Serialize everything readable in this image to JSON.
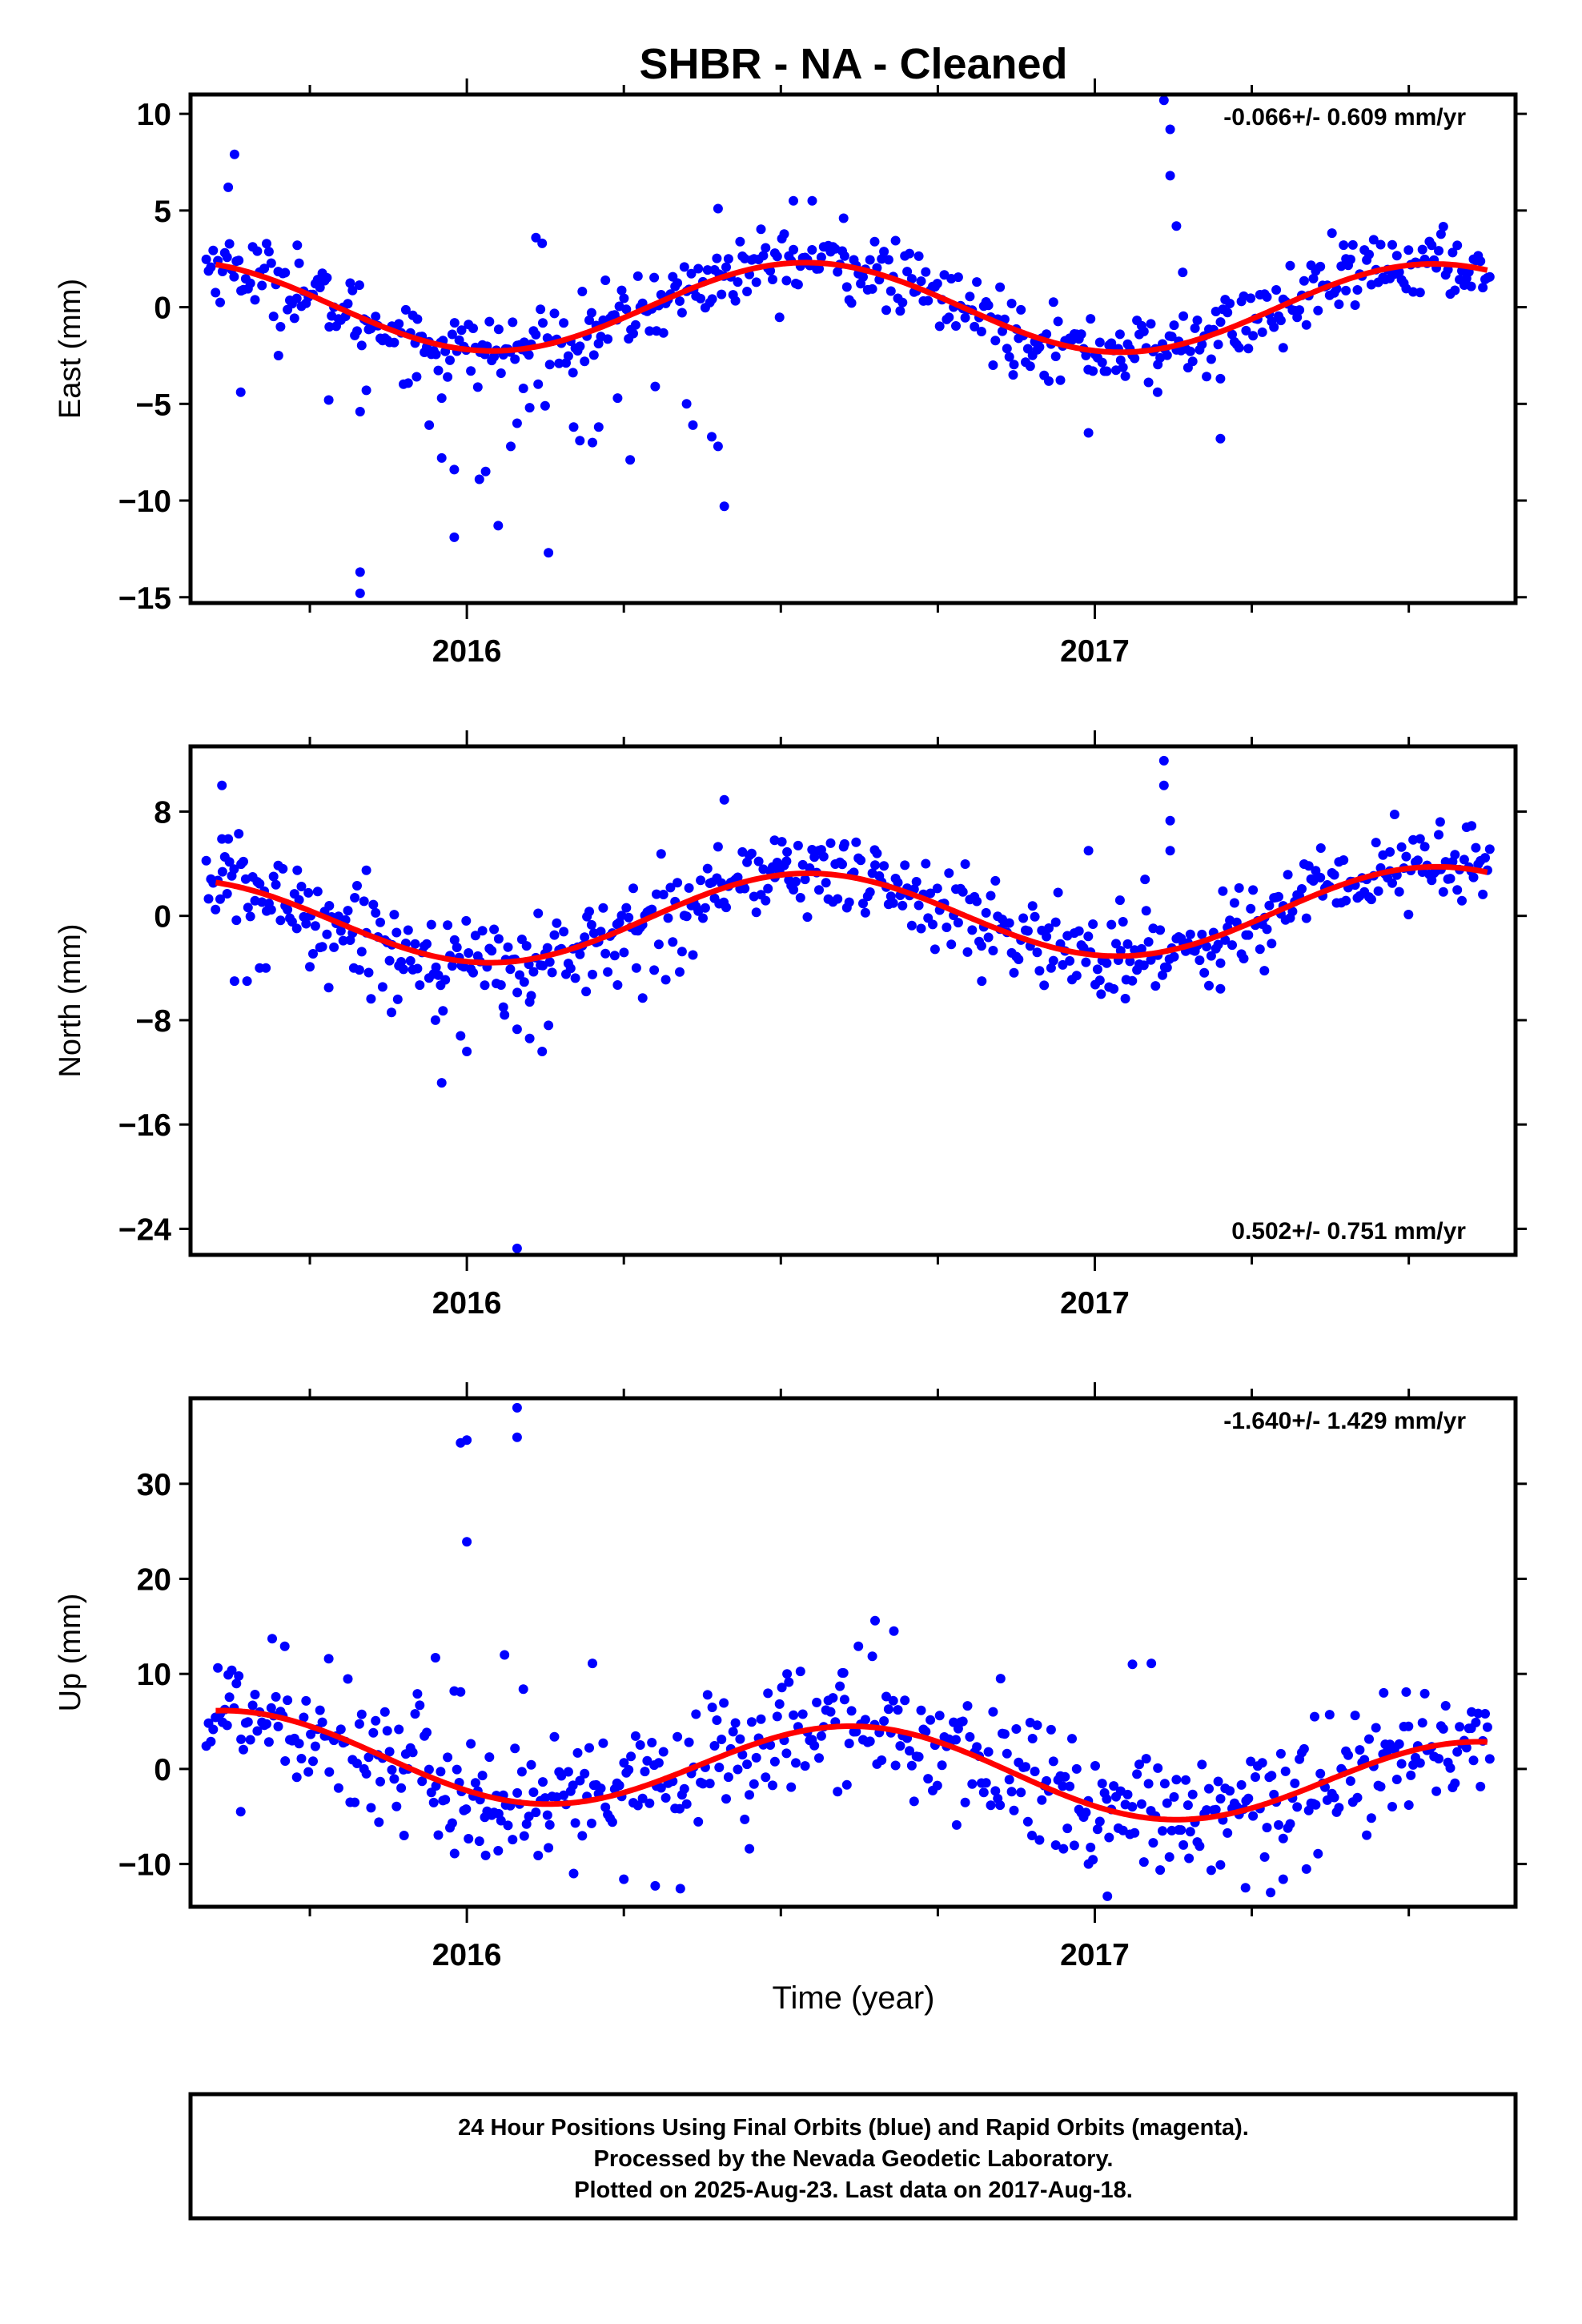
{
  "title": "SHBR  - NA - Cleaned",
  "chart_data": [
    {
      "type": "scatter",
      "name": "east",
      "ylabel": "East (mm)",
      "xlim": [
        2015.56,
        2017.67
      ],
      "ylim": [
        -15.3,
        11.0
      ],
      "yticks": [
        {
          "v": 10,
          "label": "10"
        },
        {
          "v": 5,
          "label": "5"
        },
        {
          "v": 0,
          "label": "0"
        },
        {
          "v": -5,
          "label": "−5"
        },
        {
          "v": -10,
          "label": "−10"
        },
        {
          "v": -15,
          "label": "−15"
        }
      ],
      "xticks": [
        {
          "v": 2016,
          "label": "2016"
        },
        {
          "v": 2017,
          "label": "2017"
        }
      ],
      "rate_text": "-0.066+/- 0.609 mm/yr",
      "rate_position": "top-right",
      "amp": 2.3,
      "phase_peak": 2016.54,
      "offset": 0.0,
      "slope": -0.066,
      "noise": 0.9,
      "outliers": [
        [
          2015.63,
          7.9
        ],
        [
          2015.62,
          6.2
        ],
        [
          2015.64,
          -4.4
        ],
        [
          2015.7,
          -2.5
        ],
        [
          2015.73,
          3.2
        ],
        [
          2015.78,
          -4.8
        ],
        [
          2015.83,
          -5.4
        ],
        [
          2015.83,
          -13.7
        ],
        [
          2015.83,
          -14.8
        ],
        [
          2015.84,
          -4.3
        ],
        [
          2015.92,
          -3.6
        ],
        [
          2015.94,
          -6.1
        ],
        [
          2015.96,
          -4.7
        ],
        [
          2015.96,
          -7.8
        ],
        [
          2015.98,
          -8.4
        ],
        [
          2015.98,
          -11.9
        ],
        [
          2016.02,
          -8.9
        ],
        [
          2016.03,
          -8.5
        ],
        [
          2016.05,
          -11.3
        ],
        [
          2016.07,
          -7.2
        ],
        [
          2016.08,
          -6.0
        ],
        [
          2016.09,
          -4.2
        ],
        [
          2016.11,
          3.6
        ],
        [
          2016.12,
          3.3
        ],
        [
          2016.1,
          -5.2
        ],
        [
          2016.13,
          -12.7
        ],
        [
          2016.17,
          -6.2
        ],
        [
          2016.18,
          -6.9
        ],
        [
          2016.2,
          -7.0
        ],
        [
          2016.21,
          -6.2
        ],
        [
          2016.24,
          -4.7
        ],
        [
          2016.26,
          -7.9
        ],
        [
          2016.3,
          -4.1
        ],
        [
          2016.35,
          -5.0
        ],
        [
          2016.36,
          -6.1
        ],
        [
          2016.39,
          -6.7
        ],
        [
          2016.4,
          5.1
        ],
        [
          2016.4,
          -7.2
        ],
        [
          2016.41,
          -10.3
        ],
        [
          2016.52,
          5.5
        ],
        [
          2016.55,
          5.5
        ],
        [
          2016.6,
          4.6
        ],
        [
          2016.87,
          -3.5
        ],
        [
          2016.99,
          -6.5
        ],
        [
          2017.04,
          -1.4
        ],
        [
          2017.1,
          -4.4
        ],
        [
          2017.11,
          10.7
        ],
        [
          2017.12,
          9.2
        ],
        [
          2017.12,
          6.8
        ],
        [
          2017.13,
          4.2
        ],
        [
          2017.14,
          1.8
        ],
        [
          2017.2,
          -3.7
        ],
        [
          2017.2,
          -6.8
        ],
        [
          2017.3,
          -2.1
        ],
        [
          2017.4,
          2.5
        ]
      ]
    },
    {
      "type": "scatter",
      "name": "north",
      "ylabel": "North (mm)",
      "xlim": [
        2015.56,
        2017.67
      ],
      "ylim": [
        -26.0,
        13.0
      ],
      "yticks": [
        {
          "v": 8,
          "label": "8"
        },
        {
          "v": 0,
          "label": "0"
        },
        {
          "v": -8,
          "label": "−8"
        },
        {
          "v": -16,
          "label": "−16"
        },
        {
          "v": -24,
          "label": "−24"
        }
      ],
      "xticks": [
        {
          "v": 2016,
          "label": "2016"
        },
        {
          "v": 2017,
          "label": "2017"
        }
      ],
      "rate_text": "0.502+/- 0.751 mm/yr",
      "rate_position": "bottom-right",
      "amp": 3.3,
      "phase_peak": 2016.54,
      "offset": 0.0,
      "slope": 0.502,
      "noise": 1.6,
      "outliers": [
        [
          2015.61,
          10.0
        ],
        [
          2015.61,
          5.9
        ],
        [
          2015.62,
          5.9
        ],
        [
          2015.63,
          -5.0
        ],
        [
          2015.65,
          -5.0
        ],
        [
          2015.67,
          -4.0
        ],
        [
          2015.68,
          -4.0
        ],
        [
          2015.73,
          3.5
        ],
        [
          2015.75,
          -3.9
        ],
        [
          2015.78,
          -5.5
        ],
        [
          2015.82,
          -4.0
        ],
        [
          2015.84,
          3.5
        ],
        [
          2015.88,
          -7.4
        ],
        [
          2015.89,
          -6.4
        ],
        [
          2015.95,
          -8.0
        ],
        [
          2015.96,
          -12.8
        ],
        [
          2015.99,
          -9.2
        ],
        [
          2016.0,
          -10.4
        ],
        [
          2016.06,
          -7.6
        ],
        [
          2016.08,
          -8.7
        ],
        [
          2016.1,
          -6.6
        ],
        [
          2016.1,
          -9.4
        ],
        [
          2016.12,
          -10.4
        ],
        [
          2016.08,
          -25.5
        ],
        [
          2016.13,
          -8.4
        ],
        [
          2016.19,
          -5.8
        ],
        [
          2016.2,
          -4.5
        ],
        [
          2016.24,
          -5.3
        ],
        [
          2016.27,
          -4.0
        ],
        [
          2016.28,
          -6.3
        ],
        [
          2016.36,
          -3.0
        ],
        [
          2016.4,
          5.3
        ],
        [
          2016.41,
          8.9
        ],
        [
          2016.44,
          2.3
        ],
        [
          2016.49,
          5.8
        ],
        [
          2016.51,
          4.9
        ],
        [
          2016.56,
          5.0
        ],
        [
          2016.6,
          5.3
        ],
        [
          2016.65,
          3.9
        ],
        [
          2016.82,
          -5.0
        ],
        [
          2016.99,
          5.0
        ],
        [
          2017.01,
          -6.0
        ],
        [
          2017.04,
          1.2
        ],
        [
          2017.05,
          -4.9
        ],
        [
          2017.08,
          2.8
        ],
        [
          2017.11,
          10.0
        ],
        [
          2017.11,
          11.9
        ],
        [
          2017.12,
          7.3
        ],
        [
          2017.12,
          5.0
        ],
        [
          2017.2,
          -5.6
        ],
        [
          2017.27,
          -4.2
        ],
        [
          2017.36,
          5.2
        ],
        [
          2017.47,
          4.9
        ],
        [
          2017.55,
          7.2
        ],
        [
          2017.6,
          6.9
        ]
      ]
    },
    {
      "type": "scatter",
      "name": "up",
      "ylabel": "Up (mm)",
      "xlim": [
        2015.56,
        2017.67
      ],
      "ylim": [
        -14.5,
        39.0
      ],
      "yticks": [
        {
          "v": 30,
          "label": "30"
        },
        {
          "v": 20,
          "label": "20"
        },
        {
          "v": 10,
          "label": "10"
        },
        {
          "v": 0,
          "label": "0"
        },
        {
          "v": -10,
          "label": "−10"
        }
      ],
      "xticks": [
        {
          "v": 2016,
          "label": "2016"
        },
        {
          "v": 2017,
          "label": "2017"
        }
      ],
      "rate_text": "-1.640+/- 1.429 mm/yr",
      "rate_position": "top-right",
      "xlabel": "Time (year)",
      "amp": 4.5,
      "phase_peak": 2016.62,
      "offset": 0.0,
      "slope": -1.64,
      "noise": 3.2,
      "outliers": [
        [
          2015.62,
          9.9
        ],
        [
          2015.64,
          -4.5
        ],
        [
          2015.69,
          13.7
        ],
        [
          2015.71,
          12.9
        ],
        [
          2015.78,
          11.6
        ],
        [
          2015.86,
          -5.6
        ],
        [
          2015.9,
          -7.0
        ],
        [
          2015.95,
          11.7
        ],
        [
          2015.98,
          8.2
        ],
        [
          2015.99,
          8.1
        ],
        [
          2015.99,
          34.3
        ],
        [
          2016.0,
          34.6
        ],
        [
          2016.0,
          23.9
        ],
        [
          2016.02,
          -7.6
        ],
        [
          2016.03,
          -9.1
        ],
        [
          2016.05,
          -8.6
        ],
        [
          2016.06,
          12.0
        ],
        [
          2016.08,
          38.0
        ],
        [
          2016.08,
          34.9
        ],
        [
          2016.09,
          8.4
        ],
        [
          2016.13,
          -8.3
        ],
        [
          2016.17,
          -11.0
        ],
        [
          2016.2,
          11.1
        ],
        [
          2016.25,
          -11.6
        ],
        [
          2016.3,
          -12.3
        ],
        [
          2016.34,
          -12.6
        ],
        [
          2016.45,
          -8.4
        ],
        [
          2016.51,
          10.0
        ],
        [
          2016.6,
          10.1
        ],
        [
          2016.65,
          15.6
        ],
        [
          2016.68,
          14.5
        ],
        [
          2016.78,
          -5.9
        ],
        [
          2016.85,
          9.5
        ],
        [
          2016.9,
          -7.0
        ],
        [
          2016.95,
          -8.4
        ],
        [
          2016.99,
          -10.0
        ],
        [
          2017.02,
          -13.4
        ],
        [
          2017.06,
          11.0
        ],
        [
          2017.09,
          11.1
        ],
        [
          2017.15,
          -9.4
        ],
        [
          2017.2,
          -10.1
        ],
        [
          2017.24,
          -12.5
        ],
        [
          2017.28,
          -13.0
        ],
        [
          2017.3,
          -11.6
        ],
        [
          2017.35,
          5.5
        ],
        [
          2017.46,
          8.0
        ],
        [
          2017.5,
          -3.8
        ],
        [
          2017.6,
          6.0
        ]
      ]
    }
  ],
  "footer": {
    "line1": "24 Hour Positions Using Final Orbits (blue) and Rapid Orbits (magenta).",
    "line2": "Processed by the Nevada Geodetic Laboratory.",
    "line3": "Plotted on 2025-Aug-23. Last data on 2017-Aug-18."
  },
  "colors": {
    "points": "#0000ff",
    "fit": "#ff0000",
    "axes": "#000000"
  }
}
